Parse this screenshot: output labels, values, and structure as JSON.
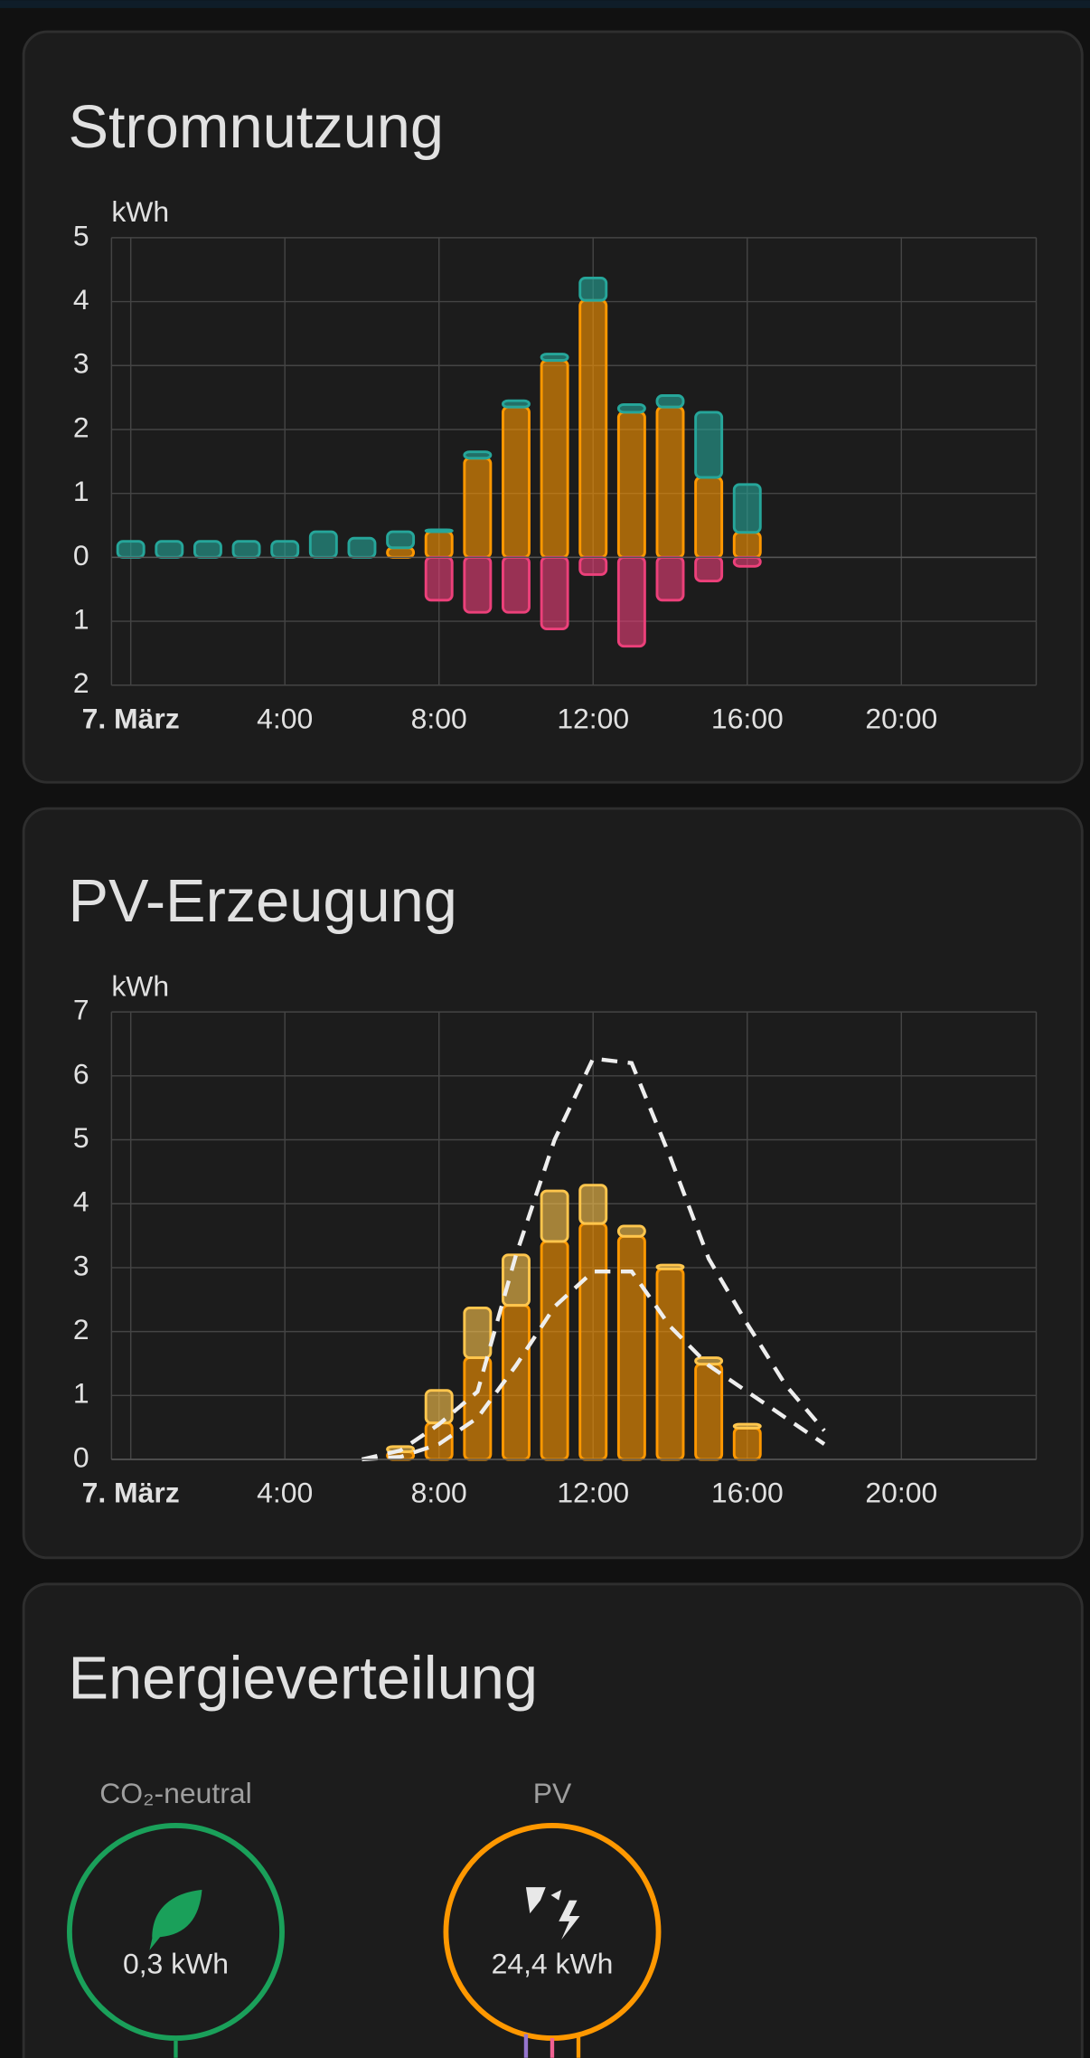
{
  "chart_data": [
    {
      "type": "bar",
      "title": "Stromnutzung",
      "y_unit": "kWh",
      "ylim": [
        -2,
        5
      ],
      "yticks": [
        {
          "value": -2,
          "label": "2"
        },
        {
          "value": -1,
          "label": "1"
        },
        0,
        1,
        2,
        3,
        4,
        5
      ],
      "xlim": [
        -0.5,
        23.5
      ],
      "xticks": [
        {
          "value": 0,
          "label": "7. März"
        },
        {
          "value": 4,
          "label": "4:00"
        },
        {
          "value": 8,
          "label": "8:00"
        },
        {
          "value": 12,
          "label": "12:00"
        },
        {
          "value": 16,
          "label": "16:00"
        },
        {
          "value": 20,
          "label": "20:00"
        }
      ],
      "grid": true,
      "x": [
        0,
        1,
        2,
        3,
        4,
        5,
        6,
        7,
        8,
        9,
        10,
        11,
        12,
        13,
        14,
        15,
        16
      ],
      "series": [
        {
          "color": "#ff9800",
          "values": [
            0,
            0,
            0,
            0,
            0,
            0,
            0,
            0.15,
            0.4,
            1.55,
            2.35,
            3.08,
            4.02,
            2.27,
            2.35,
            1.25,
            0.39
          ]
        },
        {
          "color": "#26a69a",
          "values": [
            0.25,
            0.25,
            0.25,
            0.25,
            0.25,
            0.4,
            0.3,
            0.25,
            0.03,
            0.1,
            0.1,
            0.1,
            0.35,
            0.12,
            0.18,
            1.02,
            0.75
          ]
        },
        {
          "color": "#ec407a",
          "values": [
            0,
            0,
            0,
            0,
            0,
            0,
            0,
            0,
            -0.67,
            -0.86,
            -0.86,
            -1.12,
            -0.27,
            -1.39,
            -0.67,
            -0.37,
            -0.14
          ]
        }
      ]
    },
    {
      "type": "bar",
      "title": "PV-Erzeugung",
      "y_unit": "kWh",
      "ylim": [
        0,
        7
      ],
      "yticks": [
        0,
        1,
        2,
        3,
        4,
        5,
        6,
        7
      ],
      "xlim": [
        -0.5,
        23.5
      ],
      "xticks": [
        {
          "value": 0,
          "label": "7. März"
        },
        {
          "value": 4,
          "label": "4:00"
        },
        {
          "value": 8,
          "label": "8:00"
        },
        {
          "value": 12,
          "label": "12:00"
        },
        {
          "value": 16,
          "label": "16:00"
        },
        {
          "value": 20,
          "label": "20:00"
        }
      ],
      "grid": true,
      "x": [
        0,
        1,
        2,
        3,
        4,
        5,
        6,
        7,
        8,
        9,
        10,
        11,
        12,
        13,
        14,
        15,
        16
      ],
      "series": [
        {
          "color": "#ff9800",
          "values": [
            0,
            0,
            0,
            0,
            0,
            0,
            0,
            0.12,
            0.57,
            1.59,
            2.41,
            3.41,
            3.69,
            3.49,
            2.98,
            1.49,
            0.49
          ]
        },
        {
          "color": "#ffc64d",
          "values": [
            0,
            0,
            0,
            0,
            0,
            0,
            0,
            0.08,
            0.51,
            0.78,
            0.79,
            0.79,
            0.6,
            0.16,
            0.06,
            0.1,
            0.06
          ]
        },
        {
          "type": "line",
          "dashed": true,
          "color": "#eeeeee",
          "x": [
            6,
            7,
            8,
            9,
            10,
            11,
            12,
            13,
            14,
            15,
            16,
            17,
            18
          ],
          "values": [
            0,
            0.14,
            0.55,
            1.06,
            3.2,
            5.0,
            6.27,
            6.2,
            4.73,
            3.14,
            2.12,
            1.16,
            0.45
          ]
        },
        {
          "type": "line",
          "dashed": true,
          "color": "#eeeeee",
          "x": [
            6,
            7,
            8,
            9,
            10,
            11,
            12,
            13,
            14,
            15,
            16,
            17,
            18
          ],
          "values": [
            0,
            0.04,
            0.24,
            0.65,
            1.47,
            2.39,
            2.94,
            2.94,
            2.08,
            1.47,
            1.06,
            0.65,
            0.24
          ]
        }
      ]
    }
  ],
  "energy_distribution": {
    "title": "Energieverteilung",
    "nodes": [
      {
        "label": "CO₂-neutral",
        "value": "0,3 kWh"
      },
      {
        "label": "PV",
        "value": "24,4 kWh"
      }
    ]
  }
}
